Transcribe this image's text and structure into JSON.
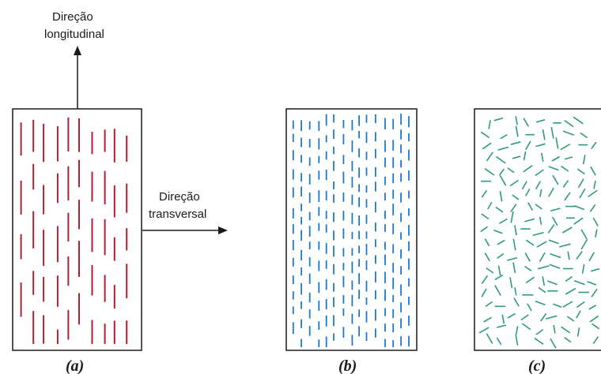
{
  "labels": {
    "longitudinal_line1": "Direção",
    "longitudinal_line2": "longitudinal",
    "transverse_line1": "Direção",
    "transverse_line2": "transversal"
  },
  "panels": [
    {
      "caption": "(a)",
      "fiber_orientation": "aligned-continuous",
      "color": "#b02030"
    },
    {
      "caption": "(b)",
      "fiber_orientation": "aligned-discontinuous",
      "color": "#1f78c8"
    },
    {
      "caption": "(c)",
      "fiber_orientation": "random-discontinuous",
      "color": "#2e9e6e"
    }
  ]
}
